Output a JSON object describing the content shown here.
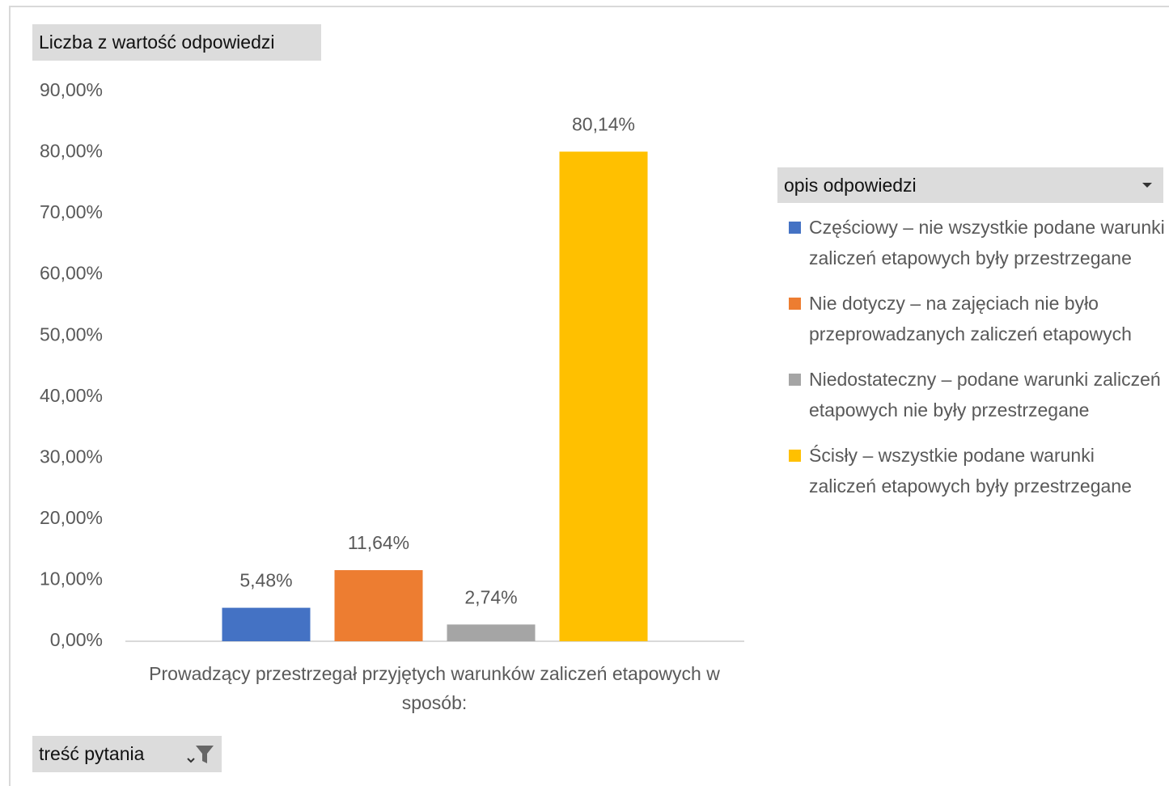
{
  "chart_data": {
    "type": "bar",
    "value_field": "Liczba z wartość odpowiedzi",
    "legend_title": "opis odpowiedzi",
    "filter_field": "treść pytania",
    "categories": [
      "Prowadzący przestrzegał przyjętych warunków zaliczeń etapowych w sposób:"
    ],
    "series": [
      {
        "name": "Częściowy – nie wszystkie podane warunki zaliczeń etapowych były przestrzegane",
        "color": "#4472c4",
        "values": [
          5.48
        ],
        "value_labels": [
          "5,48%"
        ]
      },
      {
        "name": "Nie dotyczy – na zajęciach nie było przeprowadzanych zaliczeń etapowych",
        "color": "#ed7d31",
        "values": [
          11.64
        ],
        "value_labels": [
          "11,64%"
        ]
      },
      {
        "name": "Niedostateczny – podane warunki zaliczeń etapowych nie były przestrzegane",
        "color": "#a5a5a5",
        "values": [
          2.74
        ],
        "value_labels": [
          "2,74%"
        ]
      },
      {
        "name": "Ścisły – wszystkie podane warunki zaliczeń etapowych były przestrzegane",
        "color": "#ffc000",
        "values": [
          80.14
        ],
        "value_labels": [
          "80,14%"
        ]
      }
    ],
    "ylim": [
      0,
      90
    ],
    "yticks": [
      {
        "value": 0,
        "label": "0,00%"
      },
      {
        "value": 10,
        "label": "10,00%"
      },
      {
        "value": 20,
        "label": "20,00%"
      },
      {
        "value": 30,
        "label": "30,00%"
      },
      {
        "value": 40,
        "label": "40,00%"
      },
      {
        "value": 50,
        "label": "50,00%"
      },
      {
        "value": 60,
        "label": "60,00%"
      },
      {
        "value": 70,
        "label": "70,00%"
      },
      {
        "value": 80,
        "label": "80,00%"
      },
      {
        "value": 90,
        "label": "90,00%"
      }
    ],
    "grid": false
  }
}
